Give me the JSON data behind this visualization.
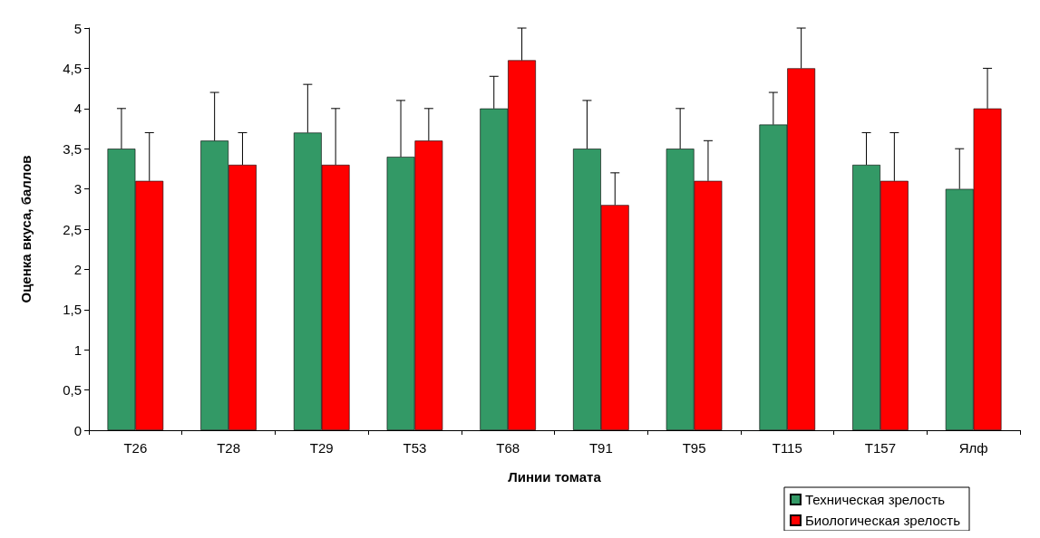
{
  "chart_data": {
    "type": "bar",
    "xlabel": "Линии томата",
    "ylabel": "Оценка вкуса, баллов",
    "categories": [
      "T26",
      "T28",
      "T29",
      "T53",
      "T68",
      "T91",
      "T95",
      "T115",
      "T157",
      "Ялф"
    ],
    "series": [
      {
        "name": "Техническая зрелость",
        "color": "#339966",
        "values": [
          3.5,
          3.6,
          3.7,
          3.4,
          4.0,
          3.5,
          3.5,
          3.8,
          3.3,
          3.0
        ],
        "errors": [
          [
            3.5,
            4.0
          ],
          [
            3.6,
            4.2
          ],
          [
            3.7,
            4.3
          ],
          [
            3.4,
            4.1
          ],
          [
            4.0,
            4.4
          ],
          [
            3.5,
            4.1
          ],
          [
            3.5,
            4.0
          ],
          [
            3.8,
            4.2
          ],
          [
            3.3,
            3.7
          ],
          [
            3.0,
            3.5
          ]
        ]
      },
      {
        "name": "Биологическая зрелость",
        "color": "#ff0000",
        "values": [
          3.1,
          3.3,
          3.3,
          3.6,
          4.6,
          2.8,
          3.1,
          4.5,
          3.1,
          4.0
        ],
        "errors": [
          [
            3.1,
            3.7
          ],
          [
            3.3,
            3.7
          ],
          [
            3.3,
            4.0
          ],
          [
            3.6,
            4.0
          ],
          [
            4.6,
            5.0
          ],
          [
            2.8,
            3.2
          ],
          [
            3.1,
            3.6
          ],
          [
            4.5,
            5.0
          ],
          [
            3.1,
            3.7
          ],
          [
            4.0,
            4.5
          ]
        ]
      }
    ],
    "ylim": [
      0,
      5
    ],
    "yticks": [
      0,
      {
        "value": 0.5,
        "label": "0,5"
      },
      1,
      {
        "value": 1.5,
        "label": "1,5"
      },
      2,
      {
        "value": 2.5,
        "label": "2,5"
      },
      3,
      {
        "value": 3.5,
        "label": "3,5"
      },
      4,
      {
        "value": 4.5,
        "label": "4,5"
      },
      5
    ],
    "grid": false,
    "legend": "bottom right"
  }
}
